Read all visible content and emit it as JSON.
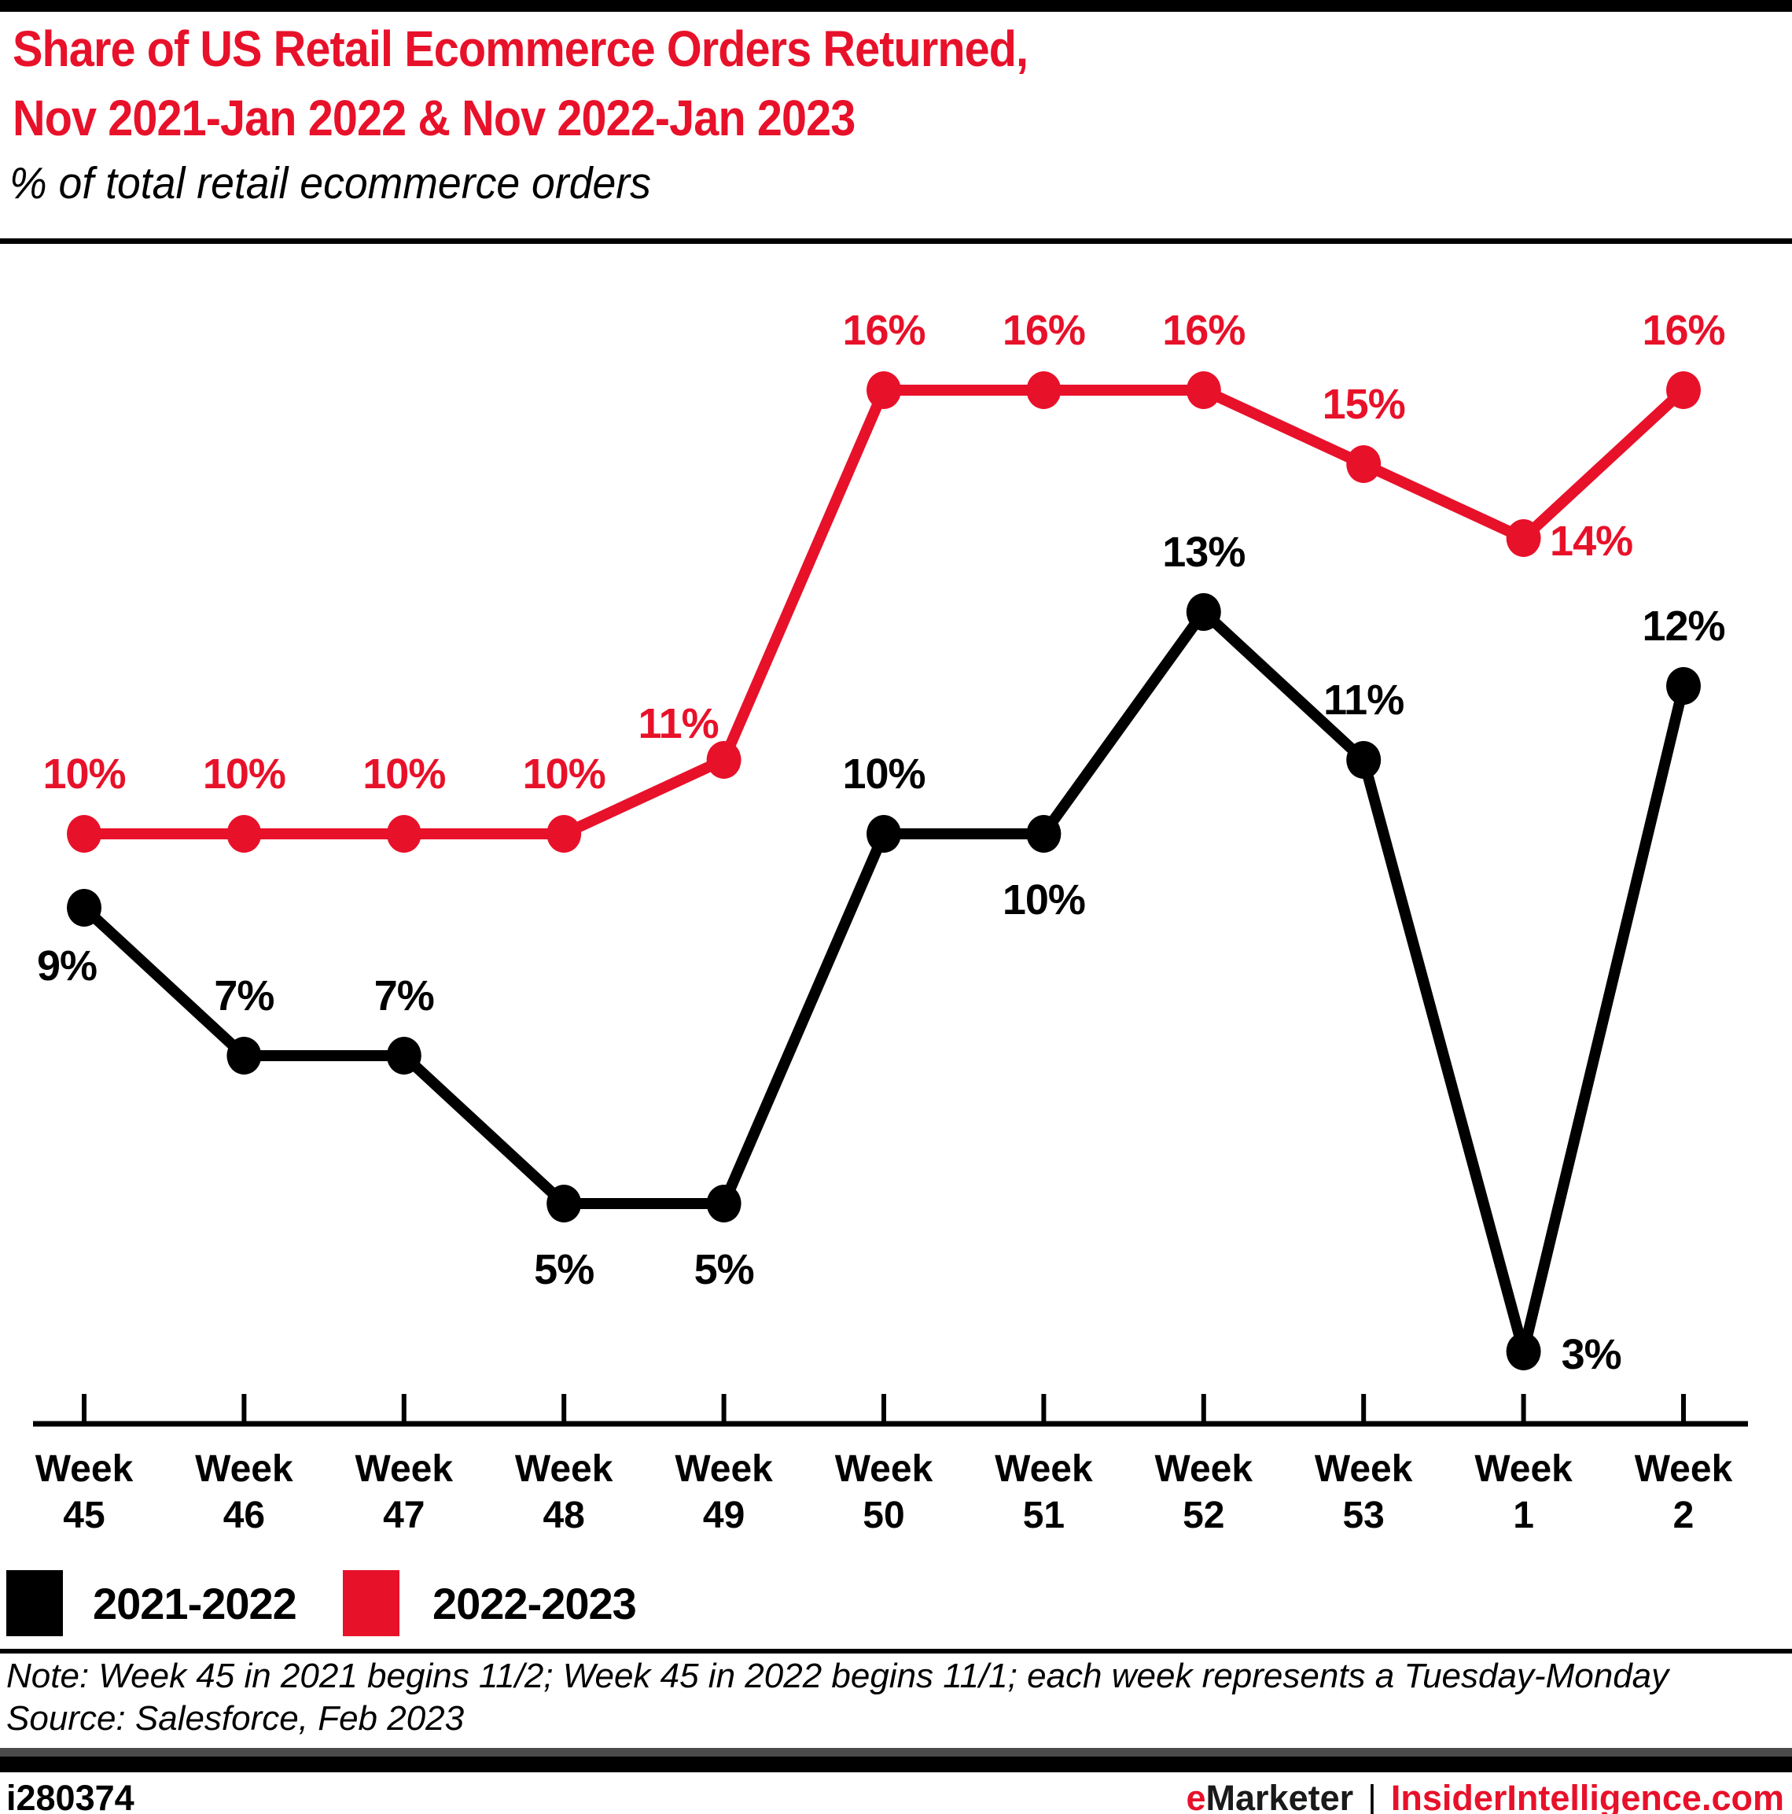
{
  "header": {
    "title_line1": "Share of US Retail Ecommerce Orders Returned,",
    "title_line2": "Nov 2021-Jan 2022 & Nov 2022-Jan 2023",
    "subtitle": "% of total retail ecommerce orders"
  },
  "chart_data": {
    "type": "line",
    "title": "Share of US Retail Ecommerce Orders Returned, Nov 2021-Jan 2022 & Nov 2022-Jan 2023",
    "subtitle": "% of total retail ecommerce orders",
    "unit": "%",
    "grid": false,
    "ylim": [
      0,
      18
    ],
    "legend_position": "bottom-left",
    "categories": [
      {
        "top": "Week",
        "bottom": "45"
      },
      {
        "top": "Week",
        "bottom": "46"
      },
      {
        "top": "Week",
        "bottom": "47"
      },
      {
        "top": "Week",
        "bottom": "48"
      },
      {
        "top": "Week",
        "bottom": "49"
      },
      {
        "top": "Week",
        "bottom": "50"
      },
      {
        "top": "Week",
        "bottom": "51"
      },
      {
        "top": "Week",
        "bottom": "52"
      },
      {
        "top": "Week",
        "bottom": "53"
      },
      {
        "top": "Week",
        "bottom": "1"
      },
      {
        "top": "Week",
        "bottom": "2"
      }
    ],
    "series": [
      {
        "name": "2021-2022",
        "color": "#000000",
        "values": [
          9,
          7,
          7,
          5,
          5,
          10,
          10,
          13,
          11,
          3,
          12
        ],
        "labels": [
          "9%",
          "7%",
          "7%",
          "5%",
          "5%",
          "10%",
          "10%",
          "13%",
          "11%",
          "3%",
          "12%"
        ],
        "label_positions": [
          "below-left",
          "above",
          "above",
          "below",
          "below",
          "above",
          "below",
          "above",
          "above",
          "right",
          "above"
        ]
      },
      {
        "name": "2022-2023",
        "color": "#e8112a",
        "values": [
          10,
          10,
          10,
          10,
          11,
          16,
          16,
          16,
          15,
          14,
          16
        ],
        "labels": [
          "10%",
          "10%",
          "10%",
          "10%",
          "11%",
          "16%",
          "16%",
          "16%",
          "15%",
          "14%",
          "16%"
        ],
        "label_positions": [
          "above",
          "above",
          "above",
          "above",
          "above-left",
          "above",
          "above",
          "above",
          "above",
          "right",
          "above"
        ]
      }
    ]
  },
  "legend": {
    "items": [
      {
        "label": "2021-2022",
        "color": "#000000"
      },
      {
        "label": "2022-2023",
        "color": "#e8112a"
      }
    ]
  },
  "footnotes": {
    "note": "Note: Week 45 in 2021 begins 11/2; Week 45 in 2022 begins 11/1; each week represents a Tuesday-Monday",
    "source": "Source: Salesforce, Feb 2023"
  },
  "footer": {
    "chart_id": "i280374",
    "brand_e": "e",
    "brand_rest": "Marketer",
    "separator": "|",
    "site": "InsiderIntelligence.com"
  },
  "colors": {
    "accent_red": "#e8112a",
    "series_black": "#000000",
    "footer_bar_gray": "#4b4b4b",
    "background": "#ffffff"
  }
}
